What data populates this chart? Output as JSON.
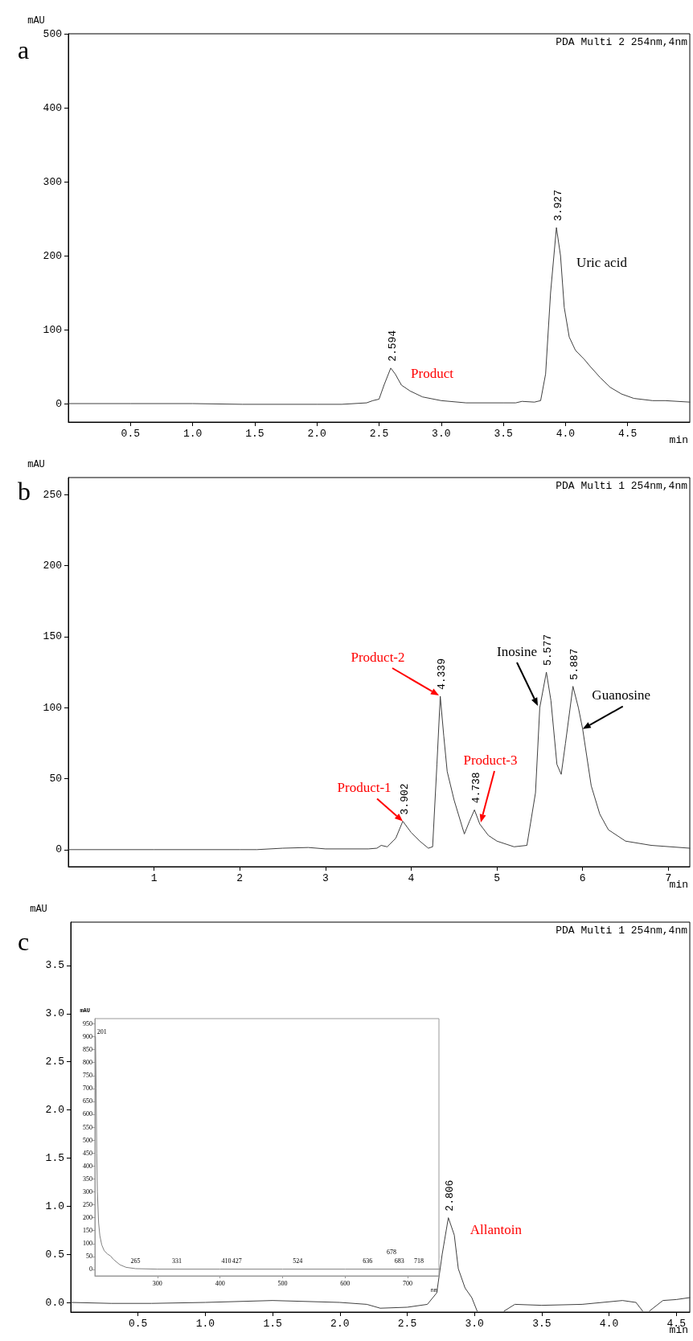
{
  "chart_data": [
    {
      "type": "line",
      "xlabel": "min",
      "ylabel": "mAU",
      "xlim": [
        0,
        5
      ],
      "ylim": [
        -25,
        500
      ],
      "marker": "none",
      "line_style": "solid",
      "xticks": [
        0.5,
        {
          "value": 1,
          "label": "1.0"
        },
        1.5,
        {
          "value": 2,
          "label": "2.0"
        },
        2.5,
        {
          "value": 3,
          "label": "3.0"
        },
        3.5,
        {
          "value": 4,
          "label": "4.0"
        },
        4.5
      ],
      "yticks": [
        0,
        100,
        200,
        300,
        400,
        500
      ],
      "series": [
        {
          "color": "#404040",
          "x": [
            0,
            0.5,
            1.0,
            1.4,
            2.0,
            2.2,
            2.4,
            2.45,
            2.5,
            2.54,
            2.594,
            2.63,
            2.68,
            2.75,
            2.85,
            3.0,
            3.2,
            3.5,
            3.6,
            3.65,
            3.75,
            3.8,
            3.84,
            3.88,
            3.927,
            3.96,
            3.99,
            4.03,
            4.08,
            4.15,
            4.2,
            4.28,
            4.36,
            4.45,
            4.55,
            4.7,
            4.8,
            5.0
          ],
          "values": [
            0,
            0,
            0,
            -1,
            -1,
            -1,
            1,
            4,
            6,
            25,
            48,
            40,
            25,
            17,
            9,
            4,
            1,
            1,
            1,
            3,
            2,
            4,
            40,
            150,
            238,
            200,
            130,
            90,
            72,
            60,
            50,
            35,
            22,
            13,
            7,
            4,
            4,
            2
          ]
        }
      ],
      "annotations": [
        "a",
        "PDA Multi 2 254nm,4nm",
        {
          "text": "2.594",
          "x": 2.594,
          "y": 48
        },
        {
          "text": "3.927",
          "x": 3.927,
          "y": 238
        },
        {
          "text": "Product",
          "x": 2.594,
          "y": 48
        },
        {
          "text": "Uric acid",
          "x": 3.927,
          "y": 238
        }
      ]
    },
    {
      "type": "line",
      "xlabel": "min",
      "ylabel": "mAU",
      "xlim": [
        0,
        7.25
      ],
      "ylim": [
        -12,
        262
      ],
      "marker": "none",
      "line_style": "solid",
      "xticks": [
        1,
        2,
        3,
        4,
        5,
        6,
        7
      ],
      "yticks": [
        0,
        50,
        100,
        150,
        200,
        250
      ],
      "series": [
        {
          "color": "#404040",
          "x": [
            0,
            1,
            2,
            2.2,
            2.5,
            2.8,
            3.0,
            3.5,
            3.6,
            3.65,
            3.72,
            3.82,
            3.902,
            4.0,
            4.1,
            4.2,
            4.25,
            4.3,
            4.339,
            4.38,
            4.42,
            4.5,
            4.62,
            4.68,
            4.738,
            4.8,
            4.9,
            5.0,
            5.2,
            5.35,
            5.45,
            5.5,
            5.577,
            5.63,
            5.7,
            5.75,
            5.8,
            5.887,
            5.95,
            6.0,
            6.1,
            6.2,
            6.3,
            6.5,
            6.8,
            7.25
          ],
          "values": [
            0,
            0,
            0,
            0,
            1,
            1.5,
            0.5,
            0.5,
            1,
            3,
            2,
            8,
            20,
            12,
            6,
            1,
            2,
            60,
            108,
            80,
            55,
            35,
            11,
            20,
            28,
            18,
            10,
            6,
            2,
            3,
            40,
            100,
            125,
            105,
            60,
            53,
            75,
            115,
            100,
            85,
            45,
            25,
            14,
            6,
            3,
            1
          ]
        }
      ],
      "annotations": [
        "b",
        "PDA Multi 1 254nm,4nm",
        {
          "text": "3.902",
          "x": 3.902,
          "y": 20
        },
        {
          "text": "4.339",
          "x": 4.339,
          "y": 108
        },
        {
          "text": "4.738",
          "x": 4.738,
          "y": 28
        },
        {
          "text": "5.577",
          "x": 5.577,
          "y": 125
        },
        {
          "text": "5.887",
          "x": 5.887,
          "y": 115
        },
        {
          "text": "Product-1",
          "x": 3.902,
          "y": 20
        },
        "Product-2",
        "Product-3",
        "Inosine",
        {
          "text": "Guanosine",
          "x": 6.0,
          "y": 85
        }
      ]
    },
    {
      "type": "line",
      "xlabel": "min",
      "ylabel": "mAU",
      "xlim": [
        0,
        4.6
      ],
      "ylim": [
        -0.1,
        3.95
      ],
      "marker": "none",
      "line_style": "solid",
      "xticks": [
        0.5,
        {
          "value": 1,
          "label": "1.0"
        },
        1.5,
        {
          "value": 2,
          "label": "2.0"
        },
        2.5,
        {
          "value": 3,
          "label": "3.0"
        },
        3.5,
        {
          "value": 4,
          "label": "4.0"
        },
        4.5
      ],
      "yticks": [
        {
          "value": 0,
          "label": "0.0"
        },
        0.5,
        {
          "value": 1,
          "label": "1.0"
        },
        1.5,
        {
          "value": 2,
          "label": "2.0"
        },
        2.5,
        {
          "value": 3,
          "label": "3.0"
        },
        3.5
      ],
      "series": [
        {
          "color": "#404040",
          "x": [
            0,
            0.3,
            0.6,
            1.0,
            1.5,
            2.0,
            2.2,
            2.3,
            2.5,
            2.65,
            2.72,
            2.76,
            2.806,
            2.85,
            2.88,
            2.93,
            2.98,
            3.02,
            3.1,
            3.22,
            3.3,
            3.5,
            3.8,
            4.1,
            4.2,
            4.25,
            4.27,
            4.3,
            4.4,
            4.5,
            4.6
          ],
          "values": [
            0,
            -0.01,
            -0.01,
            0,
            0.02,
            0,
            -0.02,
            -0.06,
            -0.05,
            -0.02,
            0.1,
            0.5,
            0.88,
            0.7,
            0.35,
            0.15,
            0.05,
            -0.09,
            null,
            -0.09,
            -0.02,
            -0.03,
            -0.02,
            0.02,
            0,
            -0.09,
            null,
            -0.09,
            0.02,
            0.03,
            0.05
          ]
        }
      ],
      "annotations": [
        "c",
        "PDA Multi 1 254nm,4nm",
        {
          "text": "2.806",
          "x": 2.806,
          "y": 0.88
        },
        {
          "text": "Allantoin",
          "x": 2.806,
          "y": 0.88
        }
      ]
    },
    {
      "type": "line",
      "xlabel": "nm",
      "ylabel": "mAU",
      "xlim": [
        200,
        750
      ],
      "ylim": [
        -25,
        970
      ],
      "marker": "none",
      "line_style": "solid",
      "xticks": [
        300,
        400,
        500,
        600,
        700
      ],
      "yticks": [
        0,
        50,
        100,
        150,
        200,
        250,
        300,
        350,
        400,
        450,
        500,
        550,
        600,
        650,
        700,
        750,
        800,
        850,
        900,
        950
      ],
      "series": [
        {
          "color": "#808080",
          "x": [
            201,
            202,
            203,
            204,
            206,
            208,
            211,
            215,
            220,
            225,
            230,
            240,
            250,
            265,
            300,
            400,
            500,
            600,
            700,
            750
          ],
          "values": [
            900,
            700,
            450,
            300,
            180,
            130,
            95,
            72,
            60,
            52,
            38,
            18,
            8,
            3,
            1,
            1,
            1,
            1,
            1,
            1
          ]
        }
      ],
      "annotations": [
        {
          "text": "201",
          "x": 201,
          "y": 900
        },
        {
          "text": "265",
          "x": 265,
          "y": 0
        },
        {
          "text": "331",
          "x": 331,
          "y": 0
        },
        {
          "text": "410",
          "x": 410,
          "y": 0
        },
        {
          "text": "427",
          "x": 427,
          "y": 0
        },
        {
          "text": "524",
          "x": 524,
          "y": 0
        },
        {
          "text": "636",
          "x": 636,
          "y": 0
        },
        {
          "text": "678",
          "x": 678,
          "y": 0
        },
        {
          "text": "683",
          "x": 683,
          "y": 0
        },
        {
          "text": "718",
          "x": 718,
          "y": 0
        }
      ]
    }
  ]
}
